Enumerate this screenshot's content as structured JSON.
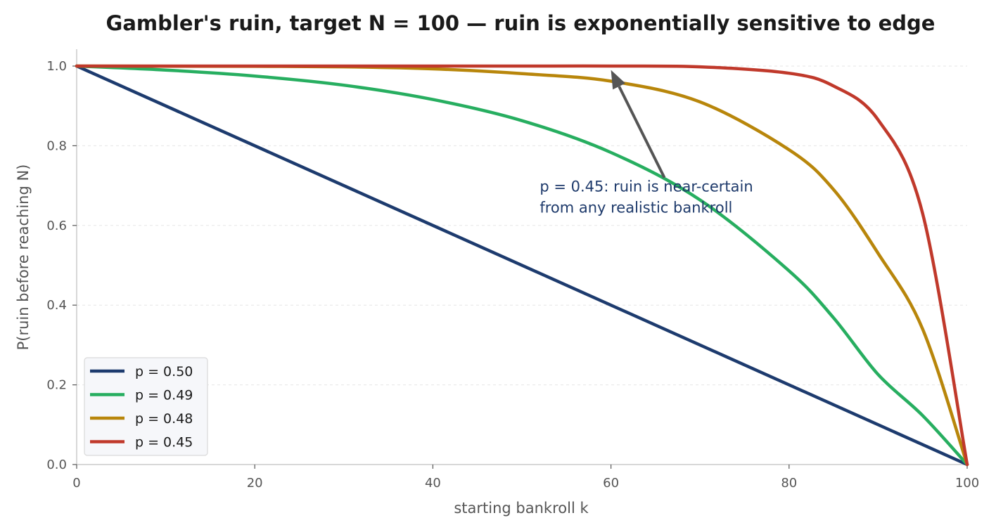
{
  "chart_data": {
    "type": "line",
    "title": "Gambler's ruin, target N = 100 — ruin is exponentially sensitive to edge",
    "xlabel": "starting bankroll k",
    "ylabel": "P(ruin before reaching N)",
    "xlim": [
      0,
      100
    ],
    "ylim": [
      0,
      1.04
    ],
    "xticks": [
      0,
      20,
      40,
      60,
      80,
      100
    ],
    "yticks": [
      0.0,
      0.2,
      0.4,
      0.6,
      0.8,
      1.0
    ],
    "xtick_labels": [
      "0",
      "20",
      "40",
      "60",
      "80",
      "100"
    ],
    "ytick_labels": [
      "0.0",
      "0.2",
      "0.4",
      "0.6",
      "0.8",
      "1.0"
    ],
    "grid": "horizontal dashed, faint",
    "legend_position": "lower-left",
    "x": [
      0,
      10,
      20,
      30,
      40,
      50,
      60,
      70,
      80,
      85,
      90,
      95,
      100
    ],
    "series": [
      {
        "name": "p = 0.50",
        "color": "#1d3b6e",
        "values": [
          1.0,
          0.9,
          0.8,
          0.7,
          0.6,
          0.5,
          0.4,
          0.3,
          0.2,
          0.15,
          0.1,
          0.05,
          0.0
        ]
      },
      {
        "name": "p = 0.49",
        "color": "#27ae60",
        "values": [
          1.0,
          0.99,
          0.975,
          0.952,
          0.916,
          0.863,
          0.783,
          0.664,
          0.486,
          0.368,
          0.226,
          0.123,
          0.0
        ]
      },
      {
        "name": "p = 0.48",
        "color": "#b8860b",
        "values": [
          1.0,
          0.9997,
          0.9993,
          0.998,
          0.993,
          0.981,
          0.962,
          0.91,
          0.79,
          0.69,
          0.53,
          0.34,
          0.0
        ]
      },
      {
        "name": "p = 0.45",
        "color": "#c0392b",
        "values": [
          1.0,
          1.0,
          1.0,
          1.0,
          1.0,
          1.0,
          1.0,
          0.998,
          0.982,
          0.95,
          0.865,
          0.63,
          0.0
        ]
      }
    ],
    "annotation": {
      "lines": [
        "p = 0.45: ruin is near-certain",
        "from any realistic bankroll"
      ],
      "arrow_from": [
        66,
        0.72
      ],
      "arrow_to": [
        60,
        0.99
      ],
      "text_anchor": [
        52,
        0.685
      ]
    }
  }
}
